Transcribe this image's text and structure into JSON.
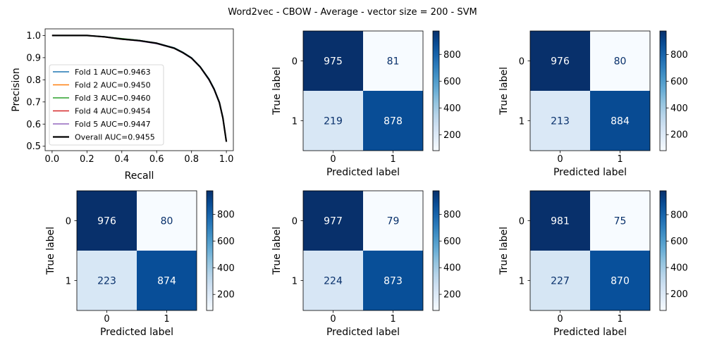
{
  "figure": {
    "suptitle": "Word2vec - CBOW - Average - vector size = 200 - SVM"
  },
  "chart_data": [
    {
      "type": "line",
      "xlabel": "Recall",
      "ylabel": "Precision",
      "xlim": [
        -0.04,
        1.04
      ],
      "ylim": [
        0.48,
        1.03
      ],
      "xticks": [
        "0.0",
        "0.2",
        "0.4",
        "0.6",
        "0.8",
        "1.0"
      ],
      "yticks": [
        "0.5",
        "0.6",
        "0.7",
        "0.8",
        "0.9",
        "1.0"
      ],
      "legend_position": "lower-left",
      "series": [
        {
          "name": "Fold 1 AUC=0.9463",
          "color": "#1f77b4",
          "x": [
            0,
            0.1,
            0.2,
            0.3,
            0.4,
            0.5,
            0.6,
            0.7,
            0.75,
            0.8,
            0.85,
            0.9,
            0.93,
            0.96,
            0.98,
            1.0
          ],
          "y": [
            1.0,
            1.0,
            1.0,
            0.995,
            0.985,
            0.978,
            0.966,
            0.945,
            0.925,
            0.9,
            0.86,
            0.805,
            0.76,
            0.7,
            0.63,
            0.52
          ]
        },
        {
          "name": "Fold 2 AUC=0.9450",
          "color": "#ff7f0e",
          "x": [
            0,
            0.1,
            0.2,
            0.3,
            0.4,
            0.5,
            0.6,
            0.7,
            0.75,
            0.8,
            0.85,
            0.9,
            0.93,
            0.96,
            0.98,
            1.0
          ],
          "y": [
            1.0,
            1.0,
            1.0,
            0.993,
            0.983,
            0.976,
            0.964,
            0.942,
            0.922,
            0.897,
            0.857,
            0.8,
            0.755,
            0.695,
            0.625,
            0.52
          ]
        },
        {
          "name": "Fold 3 AUC=0.9460",
          "color": "#2ca02c",
          "x": [
            0,
            0.1,
            0.2,
            0.3,
            0.4,
            0.5,
            0.6,
            0.7,
            0.75,
            0.8,
            0.85,
            0.9,
            0.93,
            0.96,
            0.98,
            1.0
          ],
          "y": [
            1.0,
            1.0,
            1.0,
            0.994,
            0.986,
            0.978,
            0.965,
            0.944,
            0.924,
            0.899,
            0.859,
            0.803,
            0.758,
            0.698,
            0.628,
            0.52
          ]
        },
        {
          "name": "Fold 4 AUC=0.9454",
          "color": "#d62728",
          "x": [
            0,
            0.1,
            0.2,
            0.3,
            0.4,
            0.5,
            0.6,
            0.7,
            0.75,
            0.8,
            0.85,
            0.9,
            0.93,
            0.96,
            0.98,
            1.0
          ],
          "y": [
            1.0,
            1.0,
            1.0,
            0.994,
            0.984,
            0.977,
            0.965,
            0.943,
            0.923,
            0.898,
            0.858,
            0.801,
            0.756,
            0.696,
            0.626,
            0.52
          ]
        },
        {
          "name": "Fold 5 AUC=0.9447",
          "color": "#9467bd",
          "x": [
            0,
            0.1,
            0.2,
            0.3,
            0.4,
            0.5,
            0.6,
            0.7,
            0.75,
            0.8,
            0.85,
            0.9,
            0.93,
            0.96,
            0.98,
            1.0
          ],
          "y": [
            1.0,
            1.0,
            1.0,
            0.993,
            0.983,
            0.975,
            0.963,
            0.942,
            0.921,
            0.896,
            0.856,
            0.799,
            0.754,
            0.694,
            0.624,
            0.52
          ]
        },
        {
          "name": "Overall AUC=0.9455",
          "color": "#000000",
          "thick": true,
          "x": [
            0,
            0.1,
            0.2,
            0.3,
            0.4,
            0.5,
            0.6,
            0.7,
            0.75,
            0.8,
            0.85,
            0.9,
            0.93,
            0.96,
            0.98,
            1.0
          ],
          "y": [
            1.0,
            1.0,
            1.0,
            0.994,
            0.984,
            0.977,
            0.965,
            0.943,
            0.923,
            0.898,
            0.858,
            0.802,
            0.757,
            0.697,
            0.627,
            0.52
          ]
        }
      ]
    },
    {
      "type": "heatmap",
      "matrix": [
        [
          975,
          81
        ],
        [
          219,
          878
        ]
      ],
      "xlabel": "Predicted label",
      "ylabel": "True label",
      "xticks": [
        "0",
        "1"
      ],
      "yticks": [
        "0",
        "1"
      ],
      "colorbar_ticks": [
        "200",
        "400",
        "600",
        "800"
      ],
      "cmap": "Blues"
    },
    {
      "type": "heatmap",
      "matrix": [
        [
          976,
          80
        ],
        [
          213,
          884
        ]
      ],
      "xlabel": "Predicted label",
      "ylabel": "True label",
      "xticks": [
        "0",
        "1"
      ],
      "yticks": [
        "0",
        "1"
      ],
      "colorbar_ticks": [
        "200",
        "400",
        "600",
        "800"
      ],
      "cmap": "Blues"
    },
    {
      "type": "heatmap",
      "matrix": [
        [
          976,
          80
        ],
        [
          223,
          874
        ]
      ],
      "xlabel": "Predicted label",
      "ylabel": "True label",
      "xticks": [
        "0",
        "1"
      ],
      "yticks": [
        "0",
        "1"
      ],
      "colorbar_ticks": [
        "200",
        "400",
        "600",
        "800"
      ],
      "cmap": "Blues"
    },
    {
      "type": "heatmap",
      "matrix": [
        [
          977,
          79
        ],
        [
          224,
          873
        ]
      ],
      "xlabel": "Predicted label",
      "ylabel": "True label",
      "xticks": [
        "0",
        "1"
      ],
      "yticks": [
        "0",
        "1"
      ],
      "colorbar_ticks": [
        "200",
        "400",
        "600",
        "800"
      ],
      "cmap": "Blues"
    },
    {
      "type": "heatmap",
      "matrix": [
        [
          981,
          75
        ],
        [
          227,
          870
        ]
      ],
      "xlabel": "Predicted label",
      "ylabel": "True label",
      "xticks": [
        "0",
        "1"
      ],
      "yticks": [
        "0",
        "1"
      ],
      "colorbar_ticks": [
        "200",
        "400",
        "600",
        "800"
      ],
      "cmap": "Blues"
    }
  ]
}
